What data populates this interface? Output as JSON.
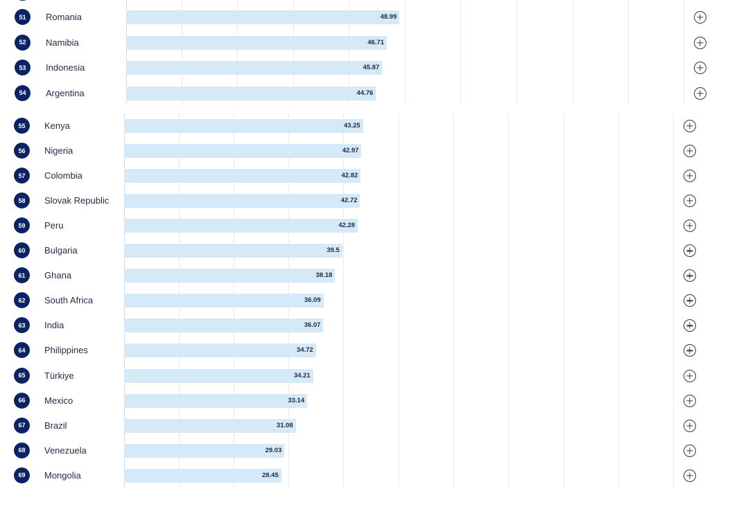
{
  "chart_data": [
    {
      "type": "bar",
      "orientation": "horizontal",
      "categories": [
        "Romania",
        "Namibia",
        "Indonesia",
        "Argentina"
      ],
      "ranks": [
        "51",
        "52",
        "53",
        "54"
      ],
      "values": [
        48.99,
        46.71,
        45.87,
        44.76
      ],
      "value_labels": [
        "48.99",
        "46.71",
        "45.87",
        "44.76"
      ],
      "xlim": [
        0,
        100
      ],
      "grid": true
    },
    {
      "type": "bar",
      "orientation": "horizontal",
      "categories": [
        "Kenya",
        "Nigeria",
        "Colombia",
        "Slovak Republic",
        "Peru",
        "Bulgaria",
        "Ghana",
        "South Africa",
        "India",
        "Philippines",
        "Türkiye",
        "Mexico",
        "Brazil",
        "Venezuela",
        "Mongolia"
      ],
      "ranks": [
        "55",
        "56",
        "57",
        "58",
        "59",
        "60",
        "61",
        "62",
        "63",
        "64",
        "65",
        "66",
        "67",
        "68",
        "69"
      ],
      "values": [
        43.25,
        42.97,
        42.82,
        42.72,
        42.28,
        39.5,
        38.18,
        36.09,
        36.07,
        34.72,
        34.21,
        33.14,
        31.08,
        29.03,
        28.45
      ],
      "value_labels": [
        "43.25",
        "42.97",
        "42.82",
        "42.72",
        "42.28",
        "39.5",
        "38.18",
        "36.09",
        "36.07",
        "34.72",
        "34.21",
        "33.14",
        "31.08",
        "29.03",
        "28.45"
      ],
      "xlim": [
        0,
        100
      ],
      "grid": true
    }
  ],
  "colors": {
    "badge": "#0b2265",
    "bar": "#d6e9f6",
    "grid": "#e6e8ec",
    "text": "#1f2a44"
  },
  "icons": {
    "expand": "plus-circle-icon"
  }
}
